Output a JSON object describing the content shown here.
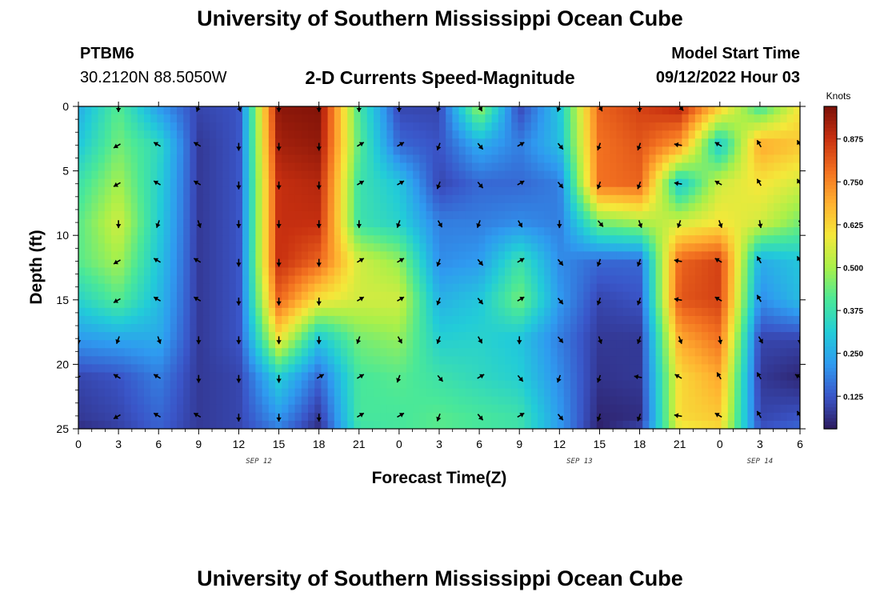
{
  "header": {
    "title": "University of Southern Mississippi Ocean Cube",
    "station": "PTBM6",
    "coords": "30.2120N  88.5050W",
    "subtitle": "2-D Currents Speed-Magnitude",
    "model_start_label": "Model Start Time",
    "model_start_value": "09/12/2022 Hour 03"
  },
  "footer": {
    "title": "University of Southern Mississippi Ocean Cube"
  },
  "chart_data": {
    "type": "heatmap",
    "title": "2-D Currents Speed-Magnitude",
    "xlabel": "Forecast Time(Z)",
    "ylabel": "Depth (ft)",
    "x_tick_labels": [
      "0",
      "3",
      "6",
      "9",
      "12",
      "15",
      "18",
      "21",
      "0",
      "3",
      "6",
      "9",
      "12",
      "15",
      "18",
      "21",
      "0",
      "3",
      "6"
    ],
    "x_hours": [
      0,
      3,
      6,
      9,
      12,
      15,
      18,
      21,
      24,
      27,
      30,
      33,
      36,
      39,
      42,
      45,
      48,
      51,
      54
    ],
    "date_labels": [
      {
        "hour": 13.5,
        "label": "SEP 12"
      },
      {
        "hour": 37.5,
        "label": "SEP 13"
      },
      {
        "hour": 51,
        "label": "SEP 14"
      }
    ],
    "y_ticks": [
      0,
      5,
      10,
      15,
      20,
      25
    ],
    "ylim": [
      25,
      0
    ],
    "colorbar": {
      "label": "Knots",
      "ticks": [
        "0.875",
        "0.750",
        "0.625",
        "0.500",
        "0.375",
        "0.250",
        "0.125"
      ],
      "tick_values": [
        0.875,
        0.75,
        0.625,
        0.5,
        0.375,
        0.25,
        0.125
      ],
      "range": [
        0.03,
        0.97
      ],
      "colors": [
        "#2c1a5e",
        "#3a55c8",
        "#2f9af0",
        "#22ccd8",
        "#4ae898",
        "#a8f04a",
        "#f4e83a",
        "#ffb030",
        "#f27020",
        "#c83010",
        "#7a1008"
      ]
    },
    "grid_hours": [
      0,
      3,
      6,
      9,
      12,
      15,
      18,
      21,
      24,
      27,
      30,
      33,
      36,
      39,
      42,
      45,
      48,
      51,
      54
    ],
    "grid_depths": [
      0,
      3,
      6,
      9,
      12,
      15,
      18,
      21,
      24,
      25
    ],
    "speed_knots": [
      [
        0.25,
        0.42,
        0.22,
        0.1,
        0.12,
        0.95,
        0.96,
        0.4,
        0.1,
        0.1,
        0.5,
        0.1,
        0.3,
        0.8,
        0.85,
        0.9,
        0.65,
        0.38,
        0.6
      ],
      [
        0.3,
        0.45,
        0.35,
        0.08,
        0.12,
        0.92,
        0.94,
        0.42,
        0.15,
        0.12,
        0.25,
        0.18,
        0.28,
        0.78,
        0.82,
        0.72,
        0.3,
        0.7,
        0.65
      ],
      [
        0.38,
        0.5,
        0.33,
        0.08,
        0.12,
        0.88,
        0.9,
        0.38,
        0.3,
        0.1,
        0.15,
        0.15,
        0.18,
        0.78,
        0.8,
        0.3,
        0.55,
        0.6,
        0.55
      ],
      [
        0.42,
        0.55,
        0.32,
        0.08,
        0.12,
        0.88,
        0.88,
        0.38,
        0.33,
        0.18,
        0.18,
        0.2,
        0.18,
        0.45,
        0.5,
        0.55,
        0.6,
        0.55,
        0.45
      ],
      [
        0.42,
        0.5,
        0.3,
        0.08,
        0.12,
        0.88,
        0.8,
        0.55,
        0.48,
        0.2,
        0.22,
        0.38,
        0.2,
        0.15,
        0.15,
        0.8,
        0.85,
        0.25,
        0.3
      ],
      [
        0.33,
        0.42,
        0.28,
        0.08,
        0.12,
        0.8,
        0.6,
        0.55,
        0.55,
        0.26,
        0.3,
        0.45,
        0.22,
        0.1,
        0.12,
        0.82,
        0.85,
        0.2,
        0.28
      ],
      [
        0.22,
        0.24,
        0.25,
        0.08,
        0.12,
        0.6,
        0.3,
        0.45,
        0.48,
        0.32,
        0.33,
        0.3,
        0.18,
        0.08,
        0.08,
        0.7,
        0.78,
        0.1,
        0.1
      ],
      [
        0.1,
        0.12,
        0.18,
        0.08,
        0.1,
        0.32,
        0.15,
        0.4,
        0.42,
        0.38,
        0.35,
        0.32,
        0.2,
        0.07,
        0.08,
        0.62,
        0.7,
        0.08,
        0.05
      ],
      [
        0.08,
        0.1,
        0.15,
        0.08,
        0.1,
        0.22,
        0.08,
        0.4,
        0.4,
        0.42,
        0.4,
        0.38,
        0.22,
        0.05,
        0.06,
        0.62,
        0.65,
        0.1,
        0.12
      ],
      [
        0.06,
        0.09,
        0.14,
        0.08,
        0.1,
        0.18,
        0.06,
        0.38,
        0.4,
        0.42,
        0.4,
        0.38,
        0.22,
        0.04,
        0.1,
        0.58,
        0.62,
        0.12,
        0.15
      ]
    ],
    "vectors": [
      {
        "d": 0,
        "h": [
          3,
          9,
          12,
          15,
          18,
          21,
          24,
          27,
          30,
          36,
          39,
          42,
          45
        ]
      },
      {
        "d": 3,
        "h": [
          3,
          6,
          9,
          12,
          15,
          18,
          21,
          24,
          27,
          30,
          33,
          36,
          39,
          42,
          45,
          48,
          51,
          54
        ]
      },
      {
        "d": 6,
        "h": [
          3,
          6,
          9,
          12,
          15,
          18,
          21,
          24,
          27,
          30,
          33,
          36,
          39,
          42,
          45,
          48,
          51,
          54
        ]
      },
      {
        "d": 9,
        "h": [
          3,
          6,
          9,
          12,
          15,
          18,
          21,
          24,
          27,
          30,
          33,
          36,
          39,
          42,
          45,
          48,
          51,
          54
        ]
      },
      {
        "d": 12,
        "h": [
          3,
          6,
          9,
          12,
          15,
          18,
          21,
          24,
          27,
          30,
          33,
          36,
          39,
          42,
          45,
          48,
          51,
          54
        ]
      },
      {
        "d": 15,
        "h": [
          3,
          6,
          9,
          12,
          15,
          18,
          21,
          24,
          27,
          30,
          33,
          36,
          39,
          42,
          45,
          48,
          51
        ]
      },
      {
        "d": 18,
        "h": [
          0,
          3,
          6,
          9,
          12,
          15,
          18,
          21,
          24,
          27,
          30,
          33,
          36,
          39,
          42,
          45,
          48,
          51,
          54
        ]
      },
      {
        "d": 21,
        "h": [
          0,
          3,
          6,
          9,
          12,
          15,
          18,
          21,
          24,
          27,
          30,
          33,
          36,
          39,
          42,
          45,
          48,
          51,
          54
        ]
      },
      {
        "d": 24,
        "h": [
          3,
          6,
          9,
          12,
          15,
          18,
          21,
          24,
          27,
          30,
          33,
          36,
          39,
          42,
          45,
          48,
          51,
          54
        ]
      }
    ],
    "vector_angles": [
      [
        180,
        200,
        160,
        180,
        180,
        180,
        180,
        200,
        150,
        200,
        150,
        180,
        140,
        160,
        200,
        160,
        170,
        150,
        180,
        150,
        160,
        140
      ],
      [
        240,
        300,
        300,
        180,
        180,
        180,
        60,
        60,
        200,
        140,
        60,
        140,
        200,
        200,
        280,
        300,
        330,
        330,
        300,
        200,
        160,
        120
      ],
      [
        240,
        300,
        300,
        180,
        180,
        180,
        60,
        60,
        200,
        140,
        60,
        140,
        200,
        200,
        280,
        300,
        330,
        330,
        300,
        200,
        160,
        120
      ]
    ]
  }
}
